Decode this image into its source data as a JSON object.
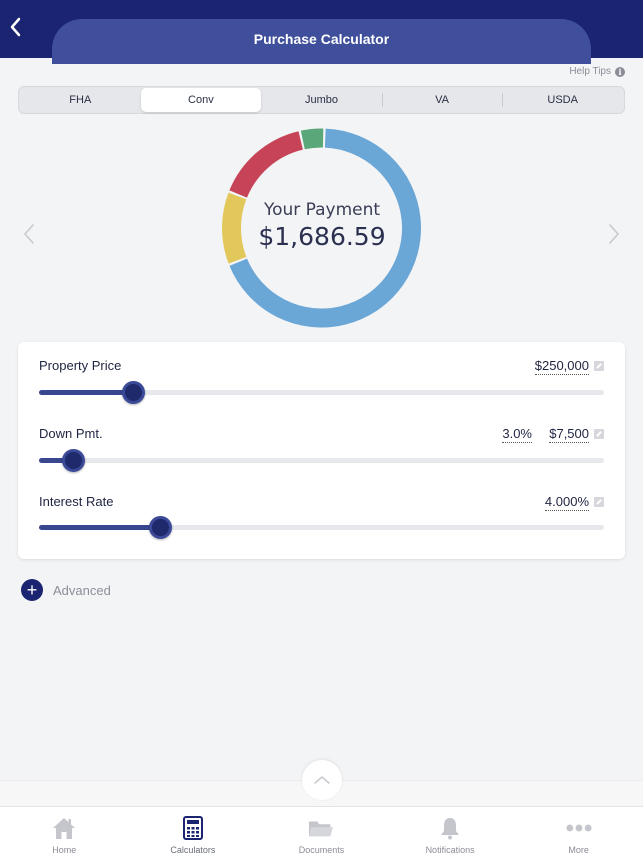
{
  "header": {
    "title": "Purchase Calculator"
  },
  "help": {
    "label": "Help Tips"
  },
  "loan_types": [
    {
      "label": "FHA",
      "active": false
    },
    {
      "label": "Conv",
      "active": true
    },
    {
      "label": "Jumbo",
      "active": false
    },
    {
      "label": "VA",
      "active": false
    },
    {
      "label": "USDA",
      "active": false
    }
  ],
  "payment": {
    "label": "Your Payment",
    "value": "$1,686.59"
  },
  "chart_data": {
    "type": "pie",
    "donut": true,
    "segments": [
      {
        "color": "#6aa6d6",
        "fraction": 0.685
      },
      {
        "color": "#e2c85a",
        "fraction": 0.12
      },
      {
        "color": "#c74458",
        "fraction": 0.155
      },
      {
        "color": "#5aa77a",
        "fraction": 0.04
      }
    ]
  },
  "sliders": {
    "property_price": {
      "label": "Property Price",
      "value": "$250,000",
      "position": 0.167
    },
    "down_payment": {
      "label": "Down Pmt.",
      "percent": "3.0%",
      "value": "$7,500",
      "position": 0.06
    },
    "interest_rate": {
      "label": "Interest Rate",
      "value": "4.000%",
      "position": 0.214
    }
  },
  "advanced": {
    "label": "Advanced"
  },
  "tabbar": [
    {
      "label": "Home",
      "icon": "home-icon"
    },
    {
      "label": "Calculators",
      "icon": "calculator-icon"
    },
    {
      "label": "Documents",
      "icon": "folder-icon"
    },
    {
      "label": "Notifications",
      "icon": "bell-icon"
    },
    {
      "label": "More",
      "icon": "more-icon"
    }
  ],
  "colors": {
    "navy": "#1a2470",
    "accent": "#3f4f9b"
  }
}
